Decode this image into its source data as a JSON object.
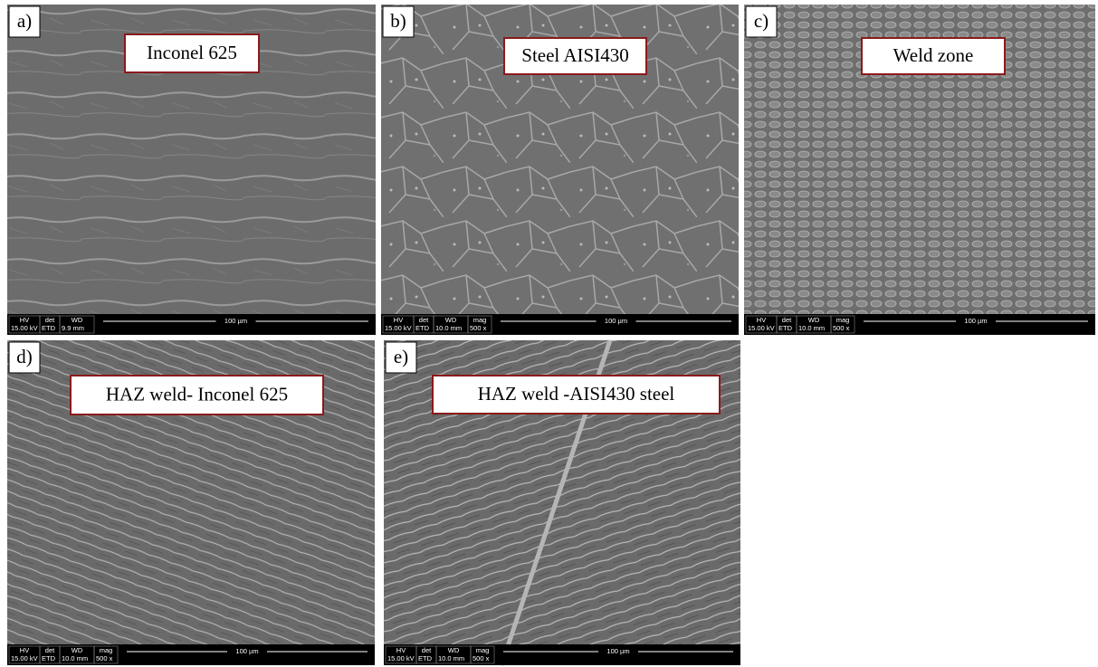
{
  "panels": [
    {
      "letter": "a)",
      "title": "Inconel 625",
      "info": {
        "hv_label": "HV",
        "hv": "15.00 kV",
        "det_label": "det",
        "det": "ETD",
        "wd_label": "WD",
        "wd": "9.9 mm",
        "scale": "100 µm"
      }
    },
    {
      "letter": "b)",
      "title": "Steel AISI430",
      "info": {
        "hv_label": "HV",
        "hv": "15.00 kV",
        "det_label": "det",
        "det": "ETD",
        "wd_label": "WD",
        "wd": "10.0 mm",
        "mag_label": "mag",
        "mag": "500 x",
        "scale": "100 µm"
      }
    },
    {
      "letter": "c)",
      "title": "Weld zone",
      "info": {
        "hv_label": "HV",
        "hv": "15.00 kV",
        "det_label": "det",
        "det": "ETD",
        "wd_label": "WD",
        "wd": "10.0 mm",
        "mag_label": "mag",
        "mag": "500 x",
        "scale": "100 µm"
      }
    },
    {
      "letter": "d)",
      "title": "HAZ weld- Inconel 625",
      "info": {
        "hv_label": "HV",
        "hv": "15.00 kV",
        "det_label": "det",
        "det": "ETD",
        "wd_label": "WD",
        "wd": "10.0 mm",
        "mag_label": "mag",
        "mag": "500 x",
        "scale": "100 µm"
      }
    },
    {
      "letter": "e)",
      "title": "HAZ weld -AISI430 steel",
      "info": {
        "hv_label": "HV",
        "hv": "15.00 kV",
        "det_label": "det",
        "det": "ETD",
        "wd_label": "WD",
        "wd": "10.0 mm",
        "mag_label": "mag",
        "mag": "500 x",
        "scale": "100 µm"
      }
    }
  ]
}
